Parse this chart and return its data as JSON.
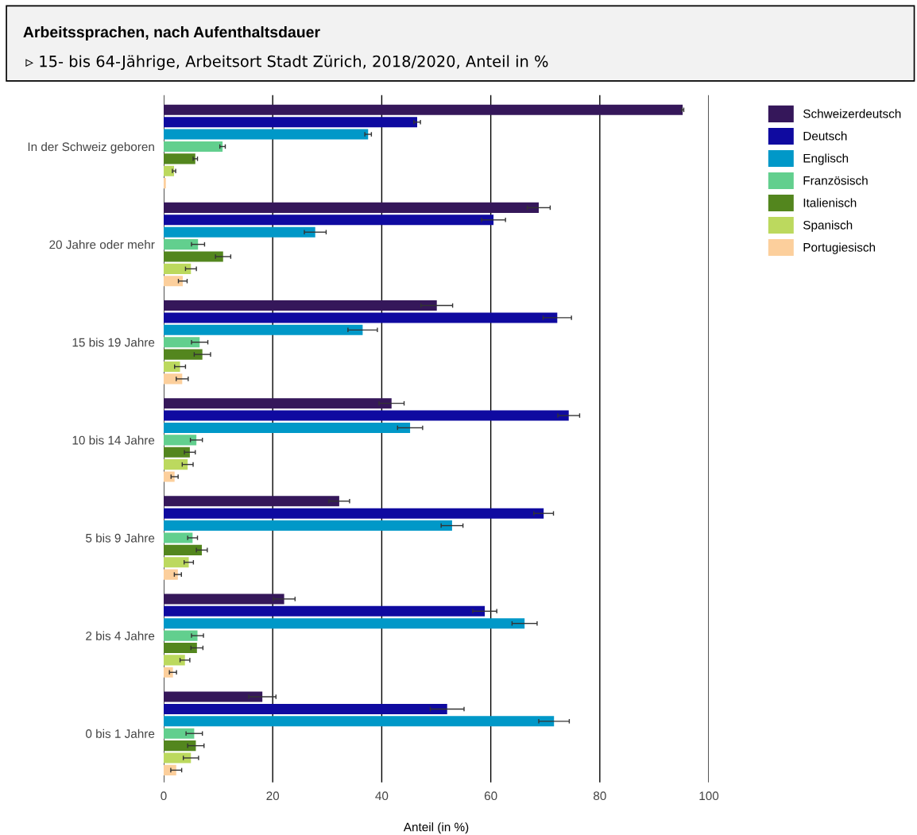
{
  "chart_data": {
    "type": "bar",
    "orientation": "horizontal",
    "title": "Arbeitssprachen, nach Aufenthaltsdauer",
    "subtitle": "▹ 15- bis 64-Jährige, Arbeitsort Stadt Zürich, 2018/2020, Anteil in %",
    "xlabel": "Anteil (in %)",
    "categories": [
      "In der Schweiz geboren",
      "20 Jahre oder mehr",
      "15 bis 19 Jahre",
      "10 bis 14 Jahre",
      "5 bis 9 Jahre",
      "2 bis 4 Jahre",
      "0 bis 1 Jahre"
    ],
    "series": [
      {
        "name": "Schweizerdeutsch",
        "color": "#35175a",
        "values": [
          95.2,
          68.8,
          50.1,
          41.8,
          32.2,
          22.1,
          18.1
        ],
        "errors": [
          0.2,
          2.1,
          2.9,
          2.3,
          1.9,
          2.0,
          2.5
        ]
      },
      {
        "name": "Deutsch",
        "color": "#0f0aa0",
        "values": [
          46.5,
          60.5,
          72.2,
          74.3,
          69.7,
          58.9,
          52.0
        ],
        "errors": [
          0.6,
          2.2,
          2.6,
          2.0,
          1.8,
          2.2,
          3.1
        ]
      },
      {
        "name": "Englisch",
        "color": "#0098c8",
        "values": [
          37.5,
          27.8,
          36.5,
          45.2,
          52.9,
          66.2,
          71.6
        ],
        "errors": [
          0.6,
          2.0,
          2.7,
          2.3,
          2.0,
          2.3,
          2.8
        ]
      },
      {
        "name": "Französisch",
        "color": "#62cf8e",
        "values": [
          10.8,
          6.3,
          6.6,
          6.0,
          5.3,
          6.2,
          5.6
        ],
        "errors": [
          0.5,
          1.2,
          1.5,
          1.1,
          0.9,
          1.1,
          1.5
        ]
      },
      {
        "name": "Italienisch",
        "color": "#53861e",
        "values": [
          5.8,
          10.9,
          7.1,
          4.8,
          7.0,
          6.1,
          5.9
        ],
        "errors": [
          0.4,
          1.4,
          1.5,
          1.0,
          1.0,
          1.1,
          1.5
        ]
      },
      {
        "name": "Spanisch",
        "color": "#bcd95e",
        "values": [
          1.9,
          5.0,
          3.0,
          4.4,
          4.6,
          3.9,
          5.0
        ],
        "errors": [
          0.3,
          1.0,
          1.0,
          1.0,
          0.85,
          0.9,
          1.4
        ]
      },
      {
        "name": "Portugiesisch",
        "color": "#fccf9c",
        "values": [
          0.4,
          3.5,
          3.4,
          2.0,
          2.6,
          1.7,
          2.3
        ],
        "errors": [
          null,
          0.8,
          1.1,
          0.65,
          0.65,
          0.65,
          1.0
        ]
      }
    ],
    "xlim": [
      0,
      100
    ],
    "xticks": [
      0,
      20,
      40,
      60,
      80,
      100
    ],
    "grid": "x",
    "legend": "right"
  }
}
